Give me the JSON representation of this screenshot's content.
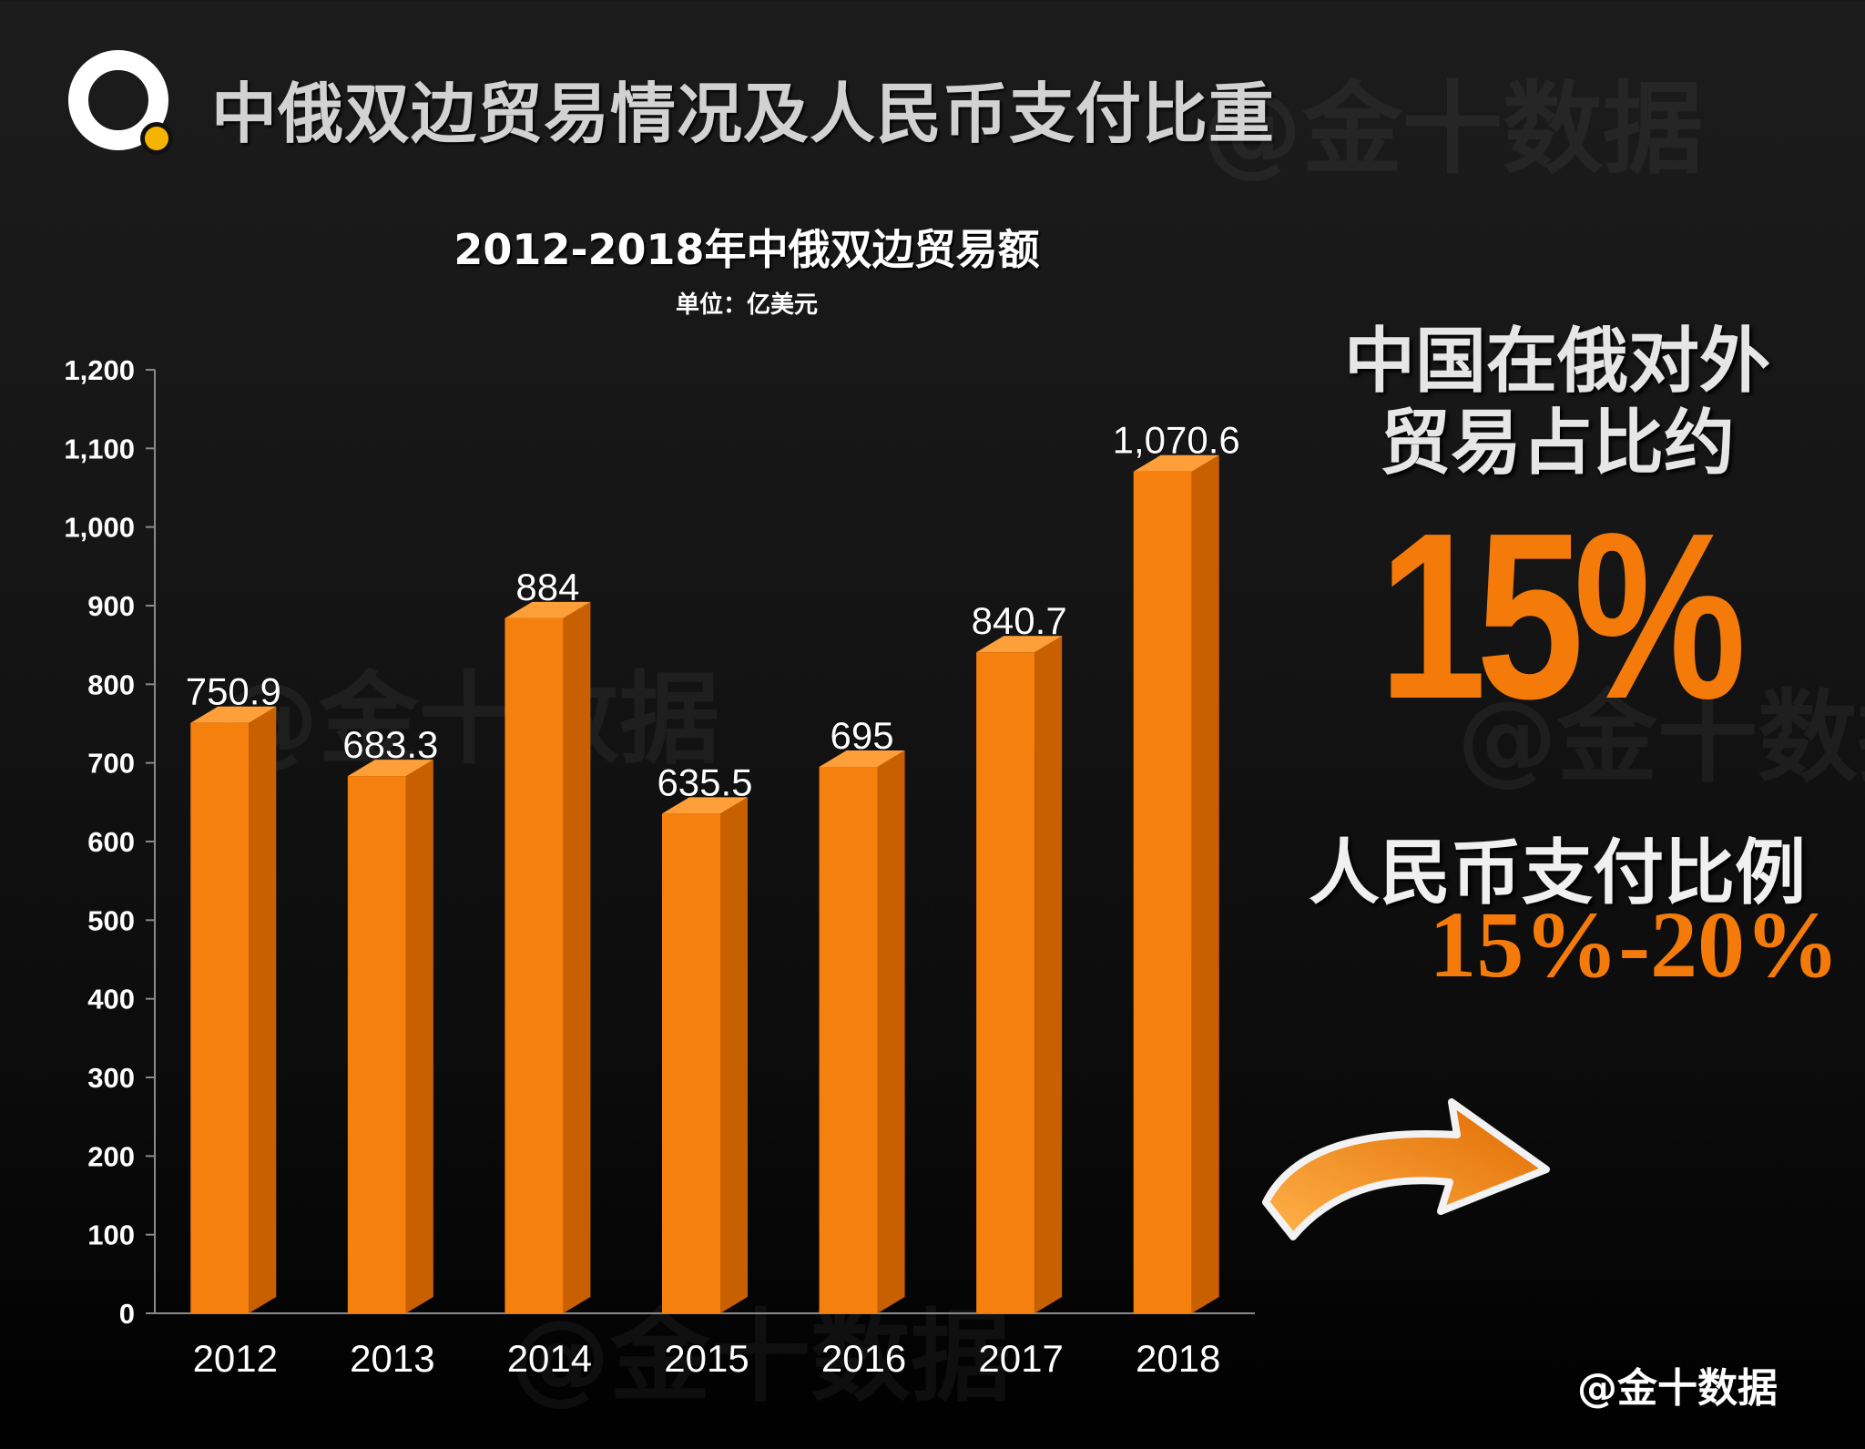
{
  "header": {
    "title": "中俄双边贸易情况及人民币支付比重",
    "watermark": "@金十数据"
  },
  "chart_data": {
    "type": "bar",
    "title": "2012-2018年中俄双边贸易额",
    "subtitle": "单位：亿美元",
    "categories": [
      "2012",
      "2013",
      "2014",
      "2015",
      "2016",
      "2017",
      "2018"
    ],
    "values": [
      750.9,
      683.3,
      884,
      635.5,
      695,
      840.7,
      1070.6
    ],
    "data_labels": [
      "750.9",
      "683.3",
      "884",
      "635.5",
      "695",
      "840.7",
      "1,070.6"
    ],
    "ylim": [
      0,
      1200
    ],
    "y_ticks": [
      0,
      100,
      200,
      300,
      400,
      500,
      600,
      700,
      800,
      900,
      1000,
      1100,
      1200
    ],
    "y_tick_labels": [
      "0",
      "100",
      "200",
      "300",
      "400",
      "500",
      "600",
      "700",
      "800",
      "900",
      "1,000",
      "1,100",
      "1,200"
    ],
    "xlabel": "",
    "ylabel": "",
    "grid": false,
    "legend": false,
    "colors": {
      "bar_front": "#f5800e",
      "bar_side": "#c85f00",
      "bar_top": "#ff9f3a"
    }
  },
  "sidebar": {
    "share_line1": "中国在俄对外",
    "share_line2": "贸易占比约",
    "share_value": "15%",
    "rmb_label": "人民币支付比例",
    "rmb_range": "15%-20%"
  },
  "footer": {
    "credit": "@金十数据"
  },
  "colors": {
    "accent": "#f47a0a",
    "logo_dot": "#f5b400",
    "logo_ring": "#ffffff"
  }
}
